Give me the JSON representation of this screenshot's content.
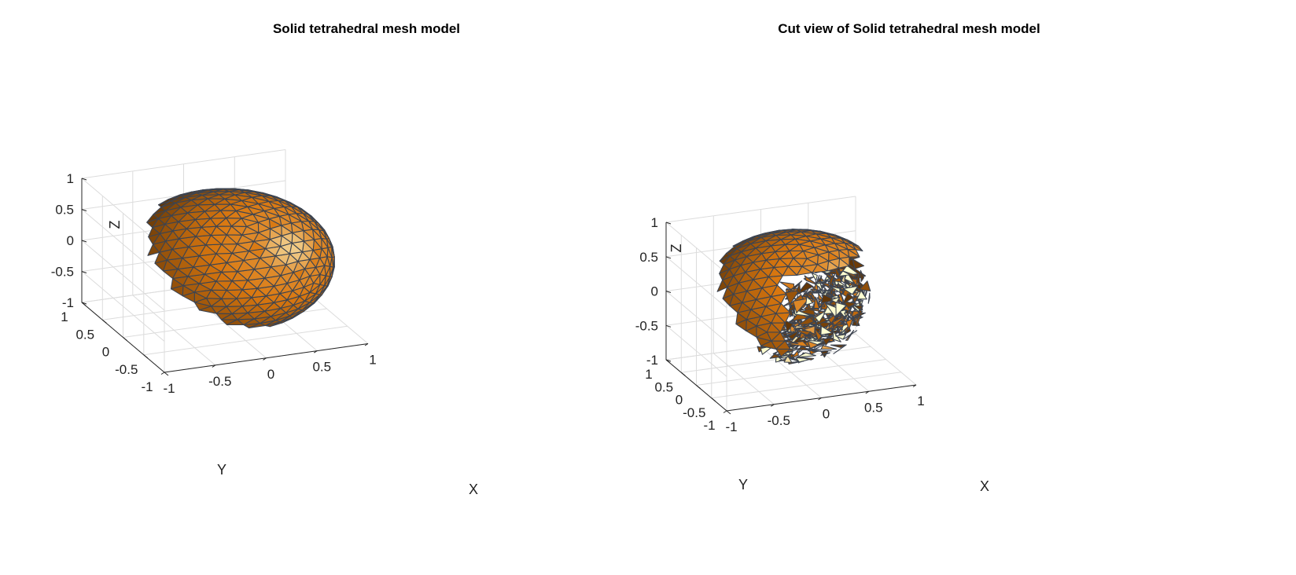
{
  "chart_data": [
    {
      "type": "surface3d",
      "title": "Solid tetrahedral mesh model",
      "xlabel": "X",
      "ylabel": "Y",
      "zlabel": "Z",
      "xlim": [
        -1,
        1
      ],
      "ylim": [
        -1,
        1
      ],
      "zlim": [
        -1,
        1
      ],
      "x_ticks": [
        "-1",
        "-0.5",
        "0",
        "0.5",
        "1"
      ],
      "y_ticks": [
        "-1",
        "-0.5",
        "0",
        "0.5",
        "1"
      ],
      "z_ticks": [
        "-1",
        "-0.5",
        "0",
        "0.5",
        "1"
      ],
      "grid": true,
      "shape": "sphere",
      "radius": 1,
      "cut": false,
      "face_color": "#d9770f",
      "edge_color": "#3d4450"
    },
    {
      "type": "surface3d",
      "title": "Cut view of Solid tetrahedral mesh model",
      "xlabel": "X",
      "ylabel": "Y",
      "zlabel": "Z",
      "xlim": [
        -1,
        1
      ],
      "ylim": [
        -1,
        1
      ],
      "zlim": [
        -1,
        1
      ],
      "x_ticks": [
        "-1",
        "-0.5",
        "0",
        "0.5",
        "1"
      ],
      "y_ticks": [
        "-1",
        "-0.5",
        "0",
        "0.5",
        "1"
      ],
      "z_ticks": [
        "-1",
        "-0.5",
        "0",
        "0.5",
        "1"
      ],
      "grid": true,
      "shape": "sphere",
      "radius": 1,
      "cut": true,
      "face_color": "#d9770f",
      "edge_color": "#3d4450"
    }
  ]
}
